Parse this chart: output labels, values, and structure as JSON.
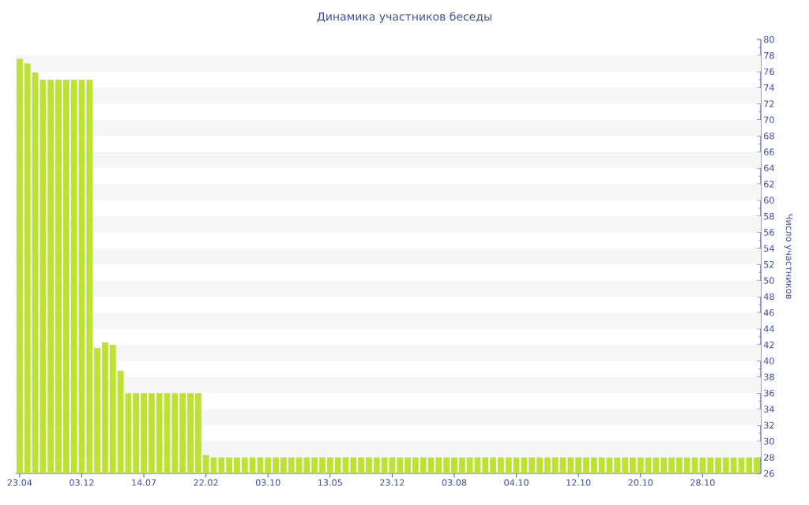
{
  "chart_data": {
    "type": "bar",
    "title": "Динамика участников беседы",
    "ylabel": "Число участников",
    "categories": [
      "23.04",
      null,
      null,
      null,
      null,
      null,
      null,
      null,
      "03.12",
      null,
      null,
      null,
      null,
      null,
      null,
      null,
      "14.07",
      null,
      null,
      null,
      null,
      null,
      null,
      null,
      "22.02",
      null,
      null,
      null,
      null,
      null,
      null,
      null,
      "03.10",
      null,
      null,
      null,
      null,
      null,
      null,
      null,
      "13.05",
      null,
      null,
      null,
      null,
      null,
      null,
      null,
      "23.12",
      null,
      null,
      null,
      null,
      null,
      null,
      null,
      "03.08",
      null,
      null,
      null,
      null,
      null,
      null,
      null,
      "04.10",
      null,
      null,
      null,
      null,
      null,
      null,
      null,
      "12.10",
      null,
      null,
      null,
      null,
      null,
      null,
      null,
      "20.10",
      null,
      null,
      null,
      null,
      null,
      null,
      null,
      "28.10",
      null,
      null,
      null,
      null,
      null,
      null,
      null
    ],
    "values": [
      77.6,
      77,
      75.9,
      75,
      75,
      75,
      75,
      75,
      75,
      75,
      41.6,
      42.3,
      42,
      38.8,
      36,
      36,
      36,
      36,
      36,
      36,
      36,
      36,
      36,
      36,
      28.3,
      28,
      28,
      28,
      28,
      28,
      28,
      28,
      28,
      28,
      28,
      28,
      28,
      28,
      28,
      28,
      28,
      28,
      28,
      28,
      28,
      28,
      28,
      28,
      28,
      28,
      28,
      28,
      28,
      28,
      28,
      28,
      28,
      28,
      28,
      28,
      28,
      28,
      28,
      28,
      28,
      28,
      28,
      28,
      28,
      28,
      28,
      28,
      28,
      28,
      28,
      28,
      28,
      28,
      28,
      28,
      28,
      28,
      28,
      28,
      28,
      28,
      28,
      28,
      28,
      28,
      28,
      28,
      28,
      28,
      28,
      28
    ],
    "color": "#bde233",
    "ylim": [
      26,
      80
    ],
    "yticks": [
      26,
      28,
      30,
      32,
      34,
      36,
      38,
      40,
      42,
      44,
      46,
      48,
      50,
      52,
      54,
      56,
      58,
      60,
      62,
      64,
      66,
      68,
      70,
      72,
      74,
      76,
      78,
      80
    ],
    "bands": [
      {
        "axis": "y",
        "from": 28,
        "to": 30,
        "color": "#f6f6f6"
      },
      {
        "axis": "y",
        "from": 32,
        "to": 34,
        "color": "#f6f6f6"
      },
      {
        "axis": "y",
        "from": 36,
        "to": 38,
        "color": "#f6f6f6"
      },
      {
        "axis": "y",
        "from": 40,
        "to": 42,
        "color": "#f6f6f6"
      },
      {
        "axis": "y",
        "from": 44,
        "to": 46,
        "color": "#f6f6f6"
      },
      {
        "axis": "y",
        "from": 48,
        "to": 50,
        "color": "#f6f6f6"
      },
      {
        "axis": "y",
        "from": 52,
        "to": 54,
        "color": "#f6f6f6"
      },
      {
        "axis": "y",
        "from": 56,
        "to": 58,
        "color": "#f6f6f6"
      },
      {
        "axis": "y",
        "from": 60,
        "to": 62,
        "color": "#f6f6f6"
      },
      {
        "axis": "y",
        "from": 64,
        "to": 66,
        "color": "#f6f6f6"
      },
      {
        "axis": "y",
        "from": 68,
        "to": 70,
        "color": "#f6f6f6"
      },
      {
        "axis": "y",
        "from": 72,
        "to": 74,
        "color": "#f6f6f6"
      },
      {
        "axis": "y",
        "from": 76,
        "to": 78,
        "color": "#f6f6f6"
      }
    ]
  }
}
